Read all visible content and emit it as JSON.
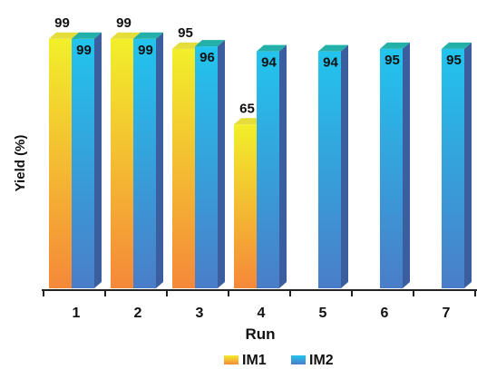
{
  "chart_data": {
    "type": "bar",
    "xlabel": "Run",
    "ylabel": "Yield  (%)",
    "categories": [
      "1",
      "2",
      "3",
      "4",
      "5",
      "6",
      "7"
    ],
    "ylim": [
      0,
      100
    ],
    "legend_position": "bottom",
    "series": [
      {
        "name": "IM1",
        "values": [
          99,
          99,
          95,
          65,
          null,
          null,
          null
        ],
        "colors": {
          "top": "#f2ef2a",
          "bottom": "#f5883a",
          "side": "#cfc81a",
          "cap": "#e4dd3a"
        }
      },
      {
        "name": "IM2",
        "values": [
          99,
          99,
          96,
          94,
          94,
          95,
          95
        ],
        "colors": {
          "top": "#22c4ee",
          "bottom": "#4a7dc8",
          "side": "#3b5f9e",
          "cap": "#22b0a8"
        }
      }
    ],
    "data_labels": {
      "IM1": [
        "99",
        "99",
        "95",
        "65",
        "",
        "",
        ""
      ],
      "IM2": [
        "99",
        "99",
        "96",
        "94",
        "94",
        "95",
        "95"
      ]
    }
  }
}
